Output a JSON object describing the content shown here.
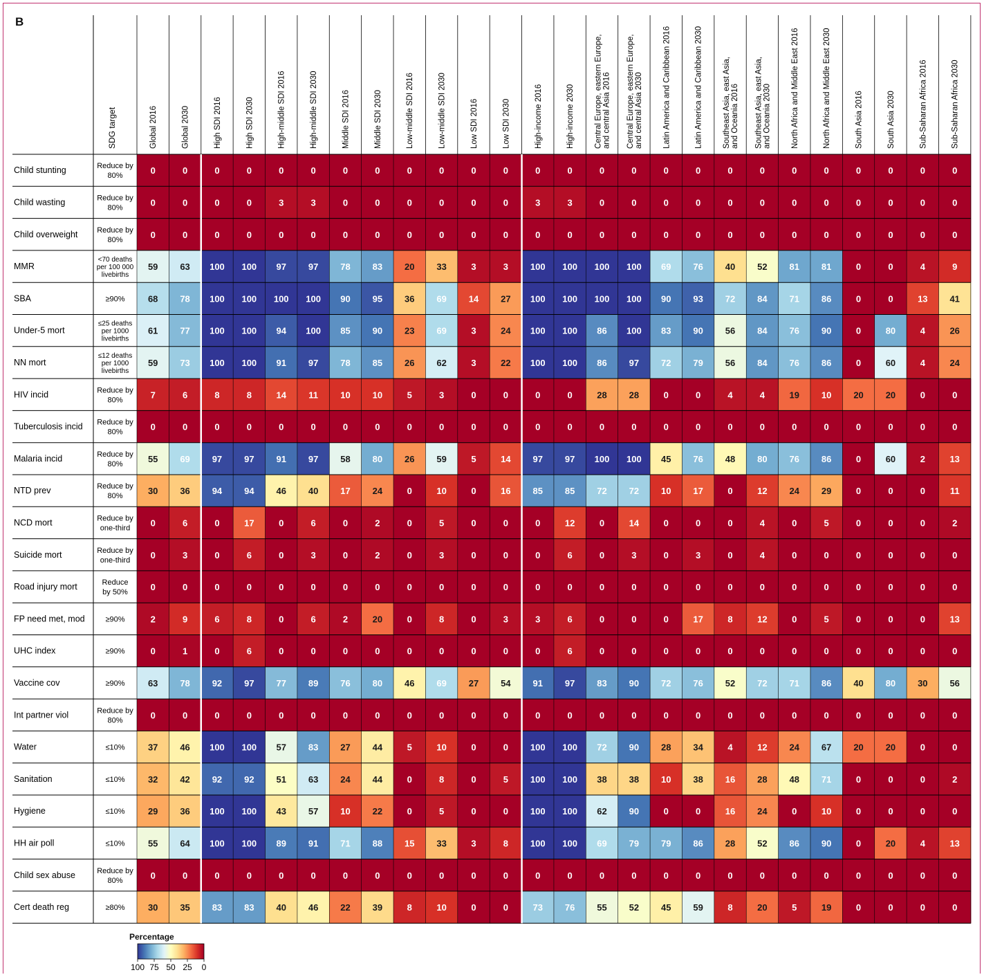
{
  "panel_label": "B",
  "legend": {
    "title": "Percentage",
    "ticks": [
      "100",
      "75",
      "50",
      "25",
      "0"
    ]
  },
  "chart_data": {
    "type": "heatmap",
    "title": "",
    "target_header": "SDG target",
    "columns": [
      "Global 2016",
      "Global 2030",
      "High SDI 2016",
      "High SDI 2030",
      "High-middle SDI 2016",
      "High-middle SDI 2030",
      "Middle SDI 2016",
      "Middle SDI 2030",
      "Low-middle SDI 2016",
      "Low-middle SDI 2030",
      "Low SDI 2016",
      "Low SDI 2030",
      "High-income 2016",
      "High-income 2030",
      "Central Europe, eastern Europe, and central Asia 2016",
      "Central Europe, eastern Europe, and central Asia 2030",
      "Latin America and Caribbean 2016",
      "Latin America and Caribbean 2030",
      "Southeast Asia, east Asia, and Oceania 2016",
      "Southeast Asia, east Asia, and Oceania 2030",
      "North Africa and Middle East 2016",
      "North Africa and Middle East 2030",
      "South Asia 2016",
      "South Asia 2030",
      "Sub-Saharan Africa 2016",
      "Sub-Saharan Africa 2030"
    ],
    "rows": [
      "Child stunting",
      "Child wasting",
      "Child overweight",
      "MMR",
      "SBA",
      "Under-5 mort",
      "NN mort",
      "HIV incid",
      "Tuberculosis incid",
      "Malaria incid",
      "NTD prev",
      "NCD mort",
      "Suicide mort",
      "Road injury mort",
      "FP need met, mod",
      "UHC index",
      "Vaccine cov",
      "Int partner viol",
      "Water",
      "Sanitation",
      "Hygiene",
      "HH air poll",
      "Child sex abuse",
      "Cert death reg"
    ],
    "targets": [
      "Reduce by 80%",
      "Reduce by 80%",
      "Reduce by 80%",
      "<70 deaths per 100 000 livebirths",
      "≥90%",
      "≤25 deaths per 1000 livebirths",
      "≤12 deaths per 1000 livebirths",
      "Reduce by 80%",
      "Reduce by 80%",
      "Reduce by 80%",
      "Reduce by 80%",
      "Reduce by one-third",
      "Reduce by one-third",
      "Reduce by 50%",
      "≥90%",
      "≥90%",
      "≥90%",
      "Reduce by 80%",
      "≤10%",
      "≤10%",
      "≤10%",
      "≤10%",
      "Reduce by 80%",
      "≥80%"
    ],
    "values": [
      [
        0,
        0,
        0,
        0,
        0,
        0,
        0,
        0,
        0,
        0,
        0,
        0,
        0,
        0,
        0,
        0,
        0,
        0,
        0,
        0,
        0,
        0,
        0,
        0,
        0,
        0
      ],
      [
        0,
        0,
        0,
        0,
        3,
        3,
        0,
        0,
        0,
        0,
        0,
        0,
        3,
        3,
        0,
        0,
        0,
        0,
        0,
        0,
        0,
        0,
        0,
        0,
        0,
        0
      ],
      [
        0,
        0,
        0,
        0,
        0,
        0,
        0,
        0,
        0,
        0,
        0,
        0,
        0,
        0,
        0,
        0,
        0,
        0,
        0,
        0,
        0,
        0,
        0,
        0,
        0,
        0
      ],
      [
        59,
        63,
        100,
        100,
        97,
        97,
        78,
        83,
        20,
        33,
        3,
        3,
        100,
        100,
        100,
        100,
        69,
        76,
        40,
        52,
        81,
        81,
        0,
        0,
        4,
        9
      ],
      [
        68,
        78,
        100,
        100,
        100,
        100,
        90,
        95,
        36,
        69,
        14,
        27,
        100,
        100,
        100,
        100,
        90,
        93,
        72,
        84,
        71,
        86,
        0,
        0,
        13,
        41
      ],
      [
        61,
        77,
        100,
        100,
        94,
        100,
        85,
        90,
        23,
        69,
        3,
        24,
        100,
        100,
        86,
        100,
        83,
        90,
        56,
        84,
        76,
        90,
        0,
        80,
        4,
        26
      ],
      [
        59,
        73,
        100,
        100,
        91,
        97,
        78,
        85,
        26,
        62,
        3,
        22,
        100,
        100,
        86,
        97,
        72,
        79,
        56,
        84,
        76,
        86,
        0,
        60,
        4,
        24
      ],
      [
        7,
        6,
        8,
        8,
        14,
        11,
        10,
        10,
        5,
        3,
        0,
        0,
        0,
        0,
        28,
        28,
        0,
        0,
        4,
        4,
        19,
        10,
        20,
        20,
        0,
        0
      ],
      [
        0,
        0,
        0,
        0,
        0,
        0,
        0,
        0,
        0,
        0,
        0,
        0,
        0,
        0,
        0,
        0,
        0,
        0,
        0,
        0,
        0,
        0,
        0,
        0,
        0,
        0
      ],
      [
        55,
        69,
        97,
        97,
        91,
        97,
        58,
        80,
        26,
        59,
        5,
        14,
        97,
        97,
        100,
        100,
        45,
        76,
        48,
        80,
        76,
        86,
        0,
        60,
        2,
        13
      ],
      [
        30,
        36,
        94,
        94,
        46,
        40,
        17,
        24,
        0,
        10,
        0,
        16,
        85,
        85,
        72,
        72,
        10,
        17,
        0,
        12,
        24,
        29,
        0,
        0,
        0,
        11
      ],
      [
        0,
        6,
        0,
        17,
        0,
        6,
        0,
        2,
        0,
        5,
        0,
        0,
        0,
        12,
        0,
        14,
        0,
        0,
        0,
        4,
        0,
        5,
        0,
        0,
        0,
        2
      ],
      [
        0,
        3,
        0,
        6,
        0,
        3,
        0,
        2,
        0,
        3,
        0,
        0,
        0,
        6,
        0,
        3,
        0,
        3,
        0,
        4,
        0,
        0,
        0,
        0,
        0,
        0
      ],
      [
        0,
        0,
        0,
        0,
        0,
        0,
        0,
        0,
        0,
        0,
        0,
        0,
        0,
        0,
        0,
        0,
        0,
        0,
        0,
        0,
        0,
        0,
        0,
        0,
        0,
        0
      ],
      [
        2,
        9,
        6,
        8,
        0,
        6,
        2,
        20,
        0,
        8,
        0,
        3,
        3,
        6,
        0,
        0,
        0,
        17,
        8,
        12,
        0,
        5,
        0,
        0,
        0,
        13
      ],
      [
        0,
        1,
        0,
        6,
        0,
        0,
        0,
        0,
        0,
        0,
        0,
        0,
        0,
        6,
        0,
        0,
        0,
        0,
        0,
        0,
        0,
        0,
        0,
        0,
        0,
        0
      ],
      [
        63,
        78,
        92,
        97,
        77,
        89,
        76,
        80,
        46,
        69,
        27,
        54,
        91,
        97,
        83,
        90,
        72,
        76,
        52,
        72,
        71,
        86,
        40,
        80,
        30,
        56
      ],
      [
        0,
        0,
        0,
        0,
        0,
        0,
        0,
        0,
        0,
        0,
        0,
        0,
        0,
        0,
        0,
        0,
        0,
        0,
        0,
        0,
        0,
        0,
        0,
        0,
        0,
        0
      ],
      [
        37,
        46,
        100,
        100,
        57,
        83,
        27,
        44,
        5,
        10,
        0,
        0,
        100,
        100,
        72,
        90,
        28,
        34,
        4,
        12,
        24,
        67,
        20,
        20,
        0,
        0
      ],
      [
        32,
        42,
        92,
        92,
        51,
        63,
        24,
        44,
        0,
        8,
        0,
        5,
        100,
        100,
        38,
        38,
        10,
        38,
        16,
        28,
        48,
        71,
        0,
        0,
        0,
        2
      ],
      [
        29,
        36,
        100,
        100,
        43,
        57,
        10,
        22,
        0,
        5,
        0,
        0,
        100,
        100,
        62,
        90,
        0,
        0,
        16,
        24,
        0,
        10,
        0,
        0,
        0,
        0
      ],
      [
        55,
        64,
        100,
        100,
        89,
        91,
        71,
        88,
        15,
        33,
        3,
        8,
        100,
        100,
        69,
        79,
        79,
        86,
        28,
        52,
        86,
        90,
        0,
        20,
        4,
        13
      ],
      [
        0,
        0,
        0,
        0,
        0,
        0,
        0,
        0,
        0,
        0,
        0,
        0,
        0,
        0,
        0,
        0,
        0,
        0,
        0,
        0,
        0,
        0,
        0,
        0,
        0,
        0
      ],
      [
        30,
        35,
        83,
        83,
        40,
        46,
        22,
        39,
        8,
        10,
        0,
        0,
        73,
        76,
        55,
        52,
        45,
        59,
        8,
        20,
        5,
        19,
        0,
        0,
        0,
        0
      ]
    ],
    "value_range": [
      0,
      100
    ],
    "colorscale": [
      "#313695",
      "#4575b4",
      "#74add1",
      "#abd9e9",
      "#e0f3f8",
      "#ffffbf",
      "#fee090",
      "#fdae61",
      "#f46d43",
      "#d73027",
      "#a50026"
    ]
  }
}
